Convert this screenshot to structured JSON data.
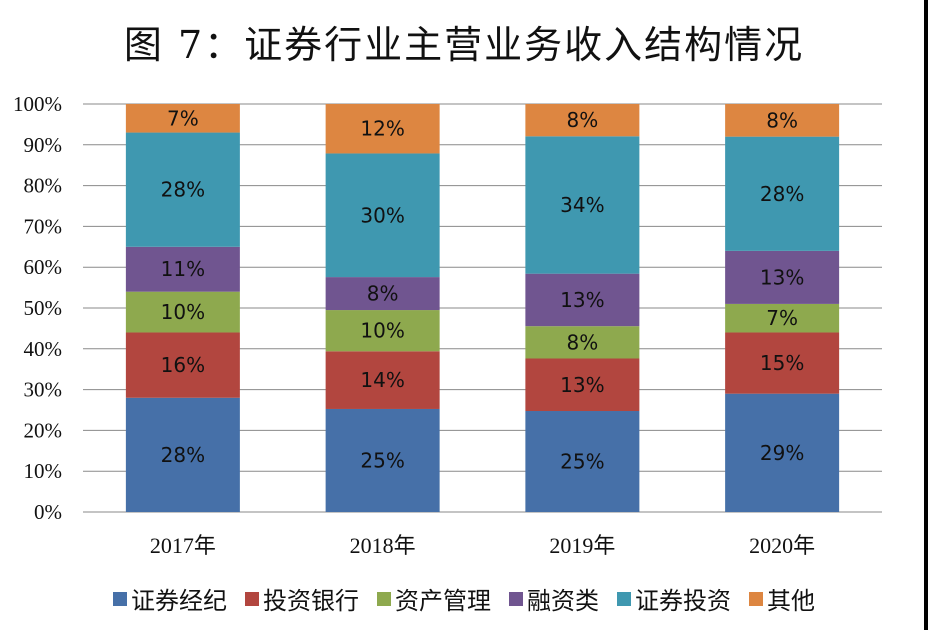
{
  "chart_data": {
    "type": "bar",
    "stacked": true,
    "title": "图 7：证券行业主营业务收入结构情况",
    "xlabel": "",
    "ylabel": "",
    "ylim": [
      0,
      100
    ],
    "yticks": [
      "0%",
      "10%",
      "20%",
      "30%",
      "40%",
      "50%",
      "60%",
      "70%",
      "80%",
      "90%",
      "100%"
    ],
    "grid": true,
    "legend_position": "bottom",
    "categories": [
      "2017年",
      "2018年",
      "2019年",
      "2020年"
    ],
    "series": [
      {
        "name": "证券经纪",
        "color": "#4670A8",
        "values": [
          28,
          25,
          25,
          29
        ]
      },
      {
        "name": "投资银行",
        "color": "#B2463F",
        "values": [
          16,
          14,
          13,
          15
        ]
      },
      {
        "name": "资产管理",
        "color": "#8EA94E",
        "values": [
          10,
          10,
          8,
          7
        ]
      },
      {
        "name": "融资类",
        "color": "#705590",
        "values": [
          11,
          8,
          13,
          13
        ]
      },
      {
        "name": "证券投资",
        "color": "#3F98B0",
        "values": [
          28,
          30,
          34,
          28
        ]
      },
      {
        "name": "其他",
        "color": "#DD8641",
        "values": [
          7,
          12,
          8,
          8
        ]
      }
    ]
  }
}
